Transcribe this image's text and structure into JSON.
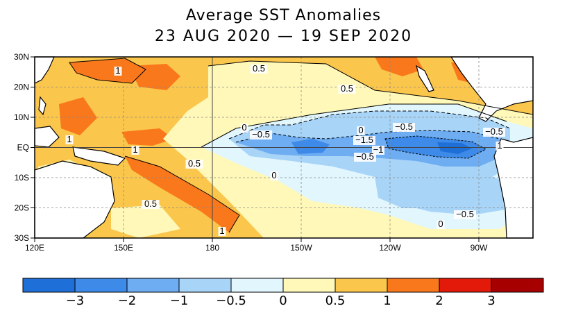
{
  "title_line1": "Average SST Anomalies",
  "title_line2": "23 AUG 2020 — 19 SEP 2020",
  "colors": {
    "n3": "#1f6fd8",
    "n2": "#3d8ae8",
    "n1": "#6eadf2",
    "n05": "#a8d4f7",
    "n0": "#e1f6fd",
    "p0": "#fff8b8",
    "p05": "#fbc64c",
    "p1": "#f9781c",
    "p2": "#e31a0a",
    "p3": "#a60000",
    "land": "#ffffff"
  },
  "map": {
    "lat_labels": [
      "30N",
      "20N",
      "10N",
      "EQ",
      "10S",
      "20S",
      "30S"
    ],
    "lon_labels": [
      "120E",
      "150E",
      "180",
      "150W",
      "120W",
      "90W"
    ],
    "contour_labels": [
      "1",
      "0.5",
      "0.5",
      "1",
      "1",
      "0.5",
      "1",
      "0.5",
      "0",
      "−0.5",
      "0",
      "−0.5",
      "−1.5",
      "−1",
      "−0.5",
      "0",
      "−0.5",
      "0",
      "−0.5",
      "1"
    ]
  },
  "colorbar": {
    "labels": [
      "−3",
      "−2",
      "−1",
      "−0.5",
      "0",
      "0.5",
      "1",
      "2",
      "3"
    ]
  }
}
